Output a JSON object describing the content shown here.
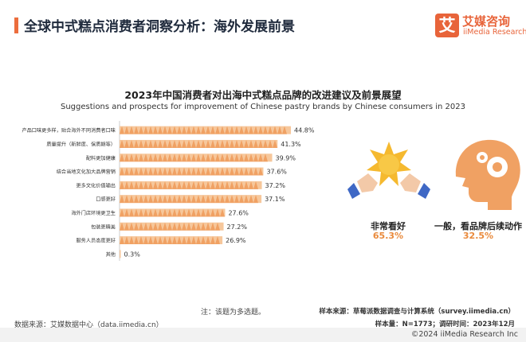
{
  "header": {
    "title": "全球中式糕点消费者洞察分析：海外发展前景",
    "logo_mark": "艾",
    "logo_cn": "艾媒咨询",
    "logo_en": "iiMedia Research"
  },
  "colors": {
    "accent": "#ec6d3d",
    "bar": "#f0a163",
    "bar_light": "#f6c79b",
    "value_highlight": "#e98a3c"
  },
  "chart_data": {
    "type": "bar",
    "orientation": "horizontal",
    "title": "2023年中国消费者对出海中式糕点品牌的改进建议及前景展望",
    "subtitle": "Suggestions and prospects for improvement of Chinese pastry brands by Chinese consumers in 2023",
    "categories": [
      "产品口味更多样，贴合海外不同消费者口味",
      "质量提升（新鲜度、保质期等）",
      "配料更加健康",
      "结合当地文化加大品牌营销",
      "更多文化价值输出",
      "口感更好",
      "海外门店环境更卫生",
      "包装更精美",
      "服务人员态度更好",
      "其他"
    ],
    "values": [
      44.8,
      41.3,
      39.9,
      37.6,
      37.2,
      37.1,
      27.6,
      27.2,
      26.9,
      0.3
    ],
    "value_labels": [
      "44.8%",
      "41.3%",
      "39.9%",
      "37.6%",
      "37.2%",
      "37.1%",
      "27.6%",
      "27.2%",
      "26.9%",
      "0.3%"
    ],
    "unit": "%",
    "xlim": [
      0,
      50
    ],
    "grid": false,
    "legend": "none"
  },
  "prospects": [
    {
      "label": "非常看好",
      "value": "65.3%",
      "icon": "star-hands-icon"
    },
    {
      "label": "一般，看品牌后续动作",
      "value": "32.5%",
      "icon": "thinking-head-icon"
    }
  ],
  "note": "注：该题为多选题。",
  "source_left": "数据来源：艾媒数据中心（data.iimedia.cn）",
  "source_right_1": "样本来源：草莓派数据调查与计算系统（survey.iimedia.cn）",
  "source_right_2": "样本量：N=1773；调研时间：2023年12月",
  "footer": "©2024  iiMedia Research  Inc"
}
